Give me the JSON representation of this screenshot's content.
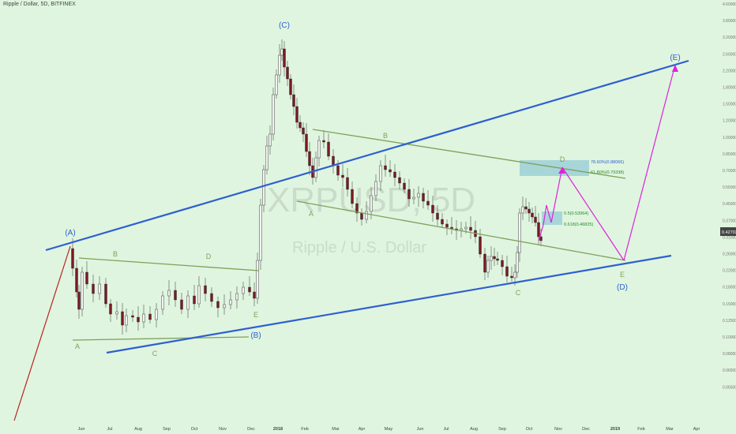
{
  "header": {
    "title": "Ripple / Dollar, 5D, BITFINEX"
  },
  "watermark": {
    "symbol": "XRPUSD, 5D",
    "name": "Ripple / U.S. Dollar"
  },
  "colors": {
    "background": "#dff5df",
    "channel": "#2f5fd0",
    "trend": "#7fa05a",
    "projection": "#e020e0",
    "up_candle": "#f2f2f2",
    "down_candle": "#7a1a22",
    "fib_box": "#8ec9d6",
    "fib_text": "#2a8a2a",
    "fib_text_blue": "#2f5fd0",
    "price_tag": "#444444"
  },
  "chart_data": {
    "type": "candlestick",
    "title": "Ripple / Dollar, 5D, BITFINEX",
    "x_tick_labels": [
      "Jun",
      "Jul",
      "Aug",
      "Sep",
      "Oct",
      "Nov",
      "Dec",
      "2018",
      "Feb",
      "Mar",
      "Apr",
      "May",
      "Jun",
      "Jul",
      "Aug",
      "Sep",
      "Oct",
      "Nov",
      "Dec",
      "2019",
      "Feb",
      "Mar",
      "Apr"
    ],
    "y_scale": "log",
    "y_tick_labels": [
      "4.60000",
      "3.80000",
      "3.20000",
      "2.60000",
      "2.20000",
      "1.80000",
      "1.50000",
      "1.20000",
      "1.00000",
      "0.85000",
      "0.70000",
      "0.55000",
      "0.45000",
      "0.37000",
      "0.31000",
      "0.26000",
      "0.22000",
      "0.18000",
      "0.15000",
      "0.12500",
      "0.10000",
      "0.08000",
      "0.06500",
      "0.05500"
    ],
    "current_price": "0.42702",
    "wave_labels_major": [
      "(A)",
      "(B)",
      "(C)",
      "(D)",
      "(E)"
    ],
    "wave_labels_minor": [
      "A",
      "B",
      "C",
      "D",
      "E",
      "A",
      "B",
      "C",
      "D",
      "E"
    ],
    "fib_levels": [
      {
        "label": "78.60%(0.88066)"
      },
      {
        "label": "61.80%(0.79338)"
      },
      {
        "label": "0.5(0.53964)"
      },
      {
        "label": "0.618(0.46825)"
      }
    ]
  }
}
